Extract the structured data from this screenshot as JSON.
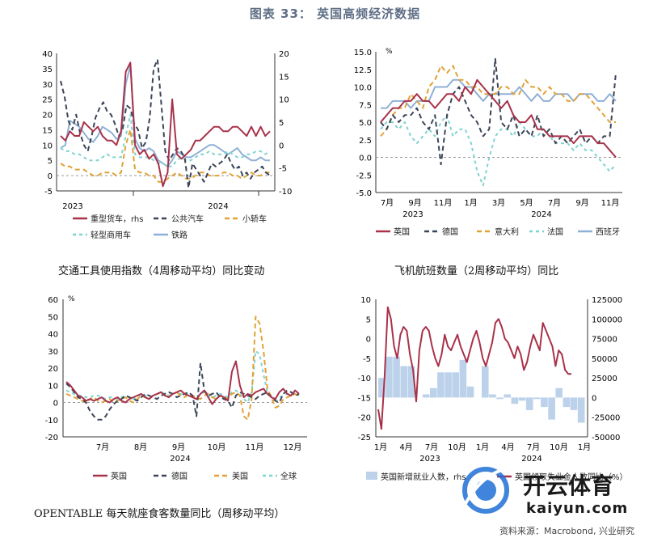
{
  "title": "图表 33： 英国高频经济数据",
  "source": "资料来源：Macrobond, 兴业研究",
  "logo": {
    "brand": "开云体育",
    "url": "kaiyun.com"
  },
  "colors": {
    "red": "#a8324a",
    "dark": "#3b4558",
    "orange": "#e0a236",
    "teal": "#7fd3d0",
    "blue": "#8fb0d6",
    "bar": "#bcd1ea"
  },
  "chart_data": [
    {
      "type": "line",
      "caption": "交通工具使用指数（4周移动平均）同比变动",
      "x_ticks": [
        "2023",
        "2024"
      ],
      "ylim_left": [
        -5,
        40
      ],
      "yticks_left": [
        40,
        35,
        30,
        25,
        20,
        15,
        10,
        5,
        0,
        -5
      ],
      "ylim_right": [
        -10,
        20
      ],
      "yticks_right": [
        20,
        15,
        10,
        5,
        0,
        -5,
        -10
      ],
      "series": [
        {
          "name": "重型货车，rhs",
          "axis": "right",
          "color": "#a8324a",
          "dash": "solid",
          "values": [
            2,
            1,
            3,
            2,
            2,
            5,
            4,
            3,
            4,
            2,
            1,
            1,
            0,
            3,
            16,
            18,
            0,
            -2,
            -1,
            -3,
            -2,
            -4,
            -9,
            -6,
            10,
            -2,
            -3,
            -2,
            -1,
            1,
            1,
            2,
            3,
            4,
            4,
            3,
            3,
            4,
            4,
            3,
            2,
            4,
            2,
            4,
            2,
            3
          ]
        },
        {
          "name": "公共汽车",
          "axis": "left",
          "color": "#3b4558",
          "dash": "6,4",
          "values": [
            31,
            26,
            18,
            15,
            20,
            14,
            10,
            8,
            13,
            19,
            22,
            24,
            21,
            20,
            17,
            13,
            15,
            23,
            22,
            17,
            15,
            9,
            11,
            19,
            35,
            38,
            23,
            8,
            5,
            7,
            9,
            8,
            6,
            -4,
            4,
            2,
            0,
            -2,
            1,
            4,
            3,
            4,
            5,
            7,
            4,
            2,
            3,
            0,
            1,
            -1,
            1,
            2,
            3,
            1,
            0
          ]
        },
        {
          "name": "小轿车",
          "axis": "left",
          "color": "#e0a236",
          "dash": "6,4",
          "values": [
            4,
            3,
            3,
            2,
            2,
            2,
            1,
            0,
            0,
            1,
            1,
            1,
            0,
            1,
            10,
            15,
            2,
            1,
            1,
            0,
            0,
            -2,
            -2,
            -1,
            0,
            1,
            0,
            -1,
            -1,
            0,
            1,
            1,
            0,
            0,
            0,
            1,
            1,
            0,
            0,
            -1,
            0,
            1,
            0,
            0,
            1,
            1
          ]
        },
        {
          "name": "轻型商用车",
          "axis": "left",
          "color": "#7fd3d0",
          "dash": "4,4",
          "values": [
            9,
            8,
            8,
            7,
            7,
            6,
            5,
            5,
            5,
            6,
            7,
            6,
            6,
            6,
            13,
            20,
            7,
            6,
            6,
            6,
            5,
            4,
            4,
            3,
            3,
            5,
            6,
            5,
            5,
            6,
            7,
            7,
            8,
            7,
            7,
            7,
            8,
            7,
            6,
            6,
            7,
            7,
            8,
            8,
            7,
            8
          ]
        },
        {
          "name": "铁路",
          "axis": "left",
          "color": "#8fb0d6",
          "dash": "solid",
          "values": [
            9,
            10,
            18,
            17,
            16,
            14,
            12,
            11,
            13,
            16,
            15,
            14,
            12,
            13,
            30,
            36,
            12,
            9,
            8,
            9,
            8,
            5,
            4,
            3,
            5,
            8,
            7,
            6,
            6,
            7,
            8,
            9,
            10,
            10,
            9,
            8,
            7,
            8,
            9,
            7,
            6,
            5,
            5,
            6,
            5,
            5
          ]
        }
      ],
      "legend_order": [
        "重型货车，rhs",
        "公共汽车",
        "小轿车",
        "轻型商用车",
        "铁路"
      ]
    },
    {
      "type": "line",
      "caption": "飞机航班数量（2周移动平均）同比",
      "unit": "%",
      "x_ticks": [
        "7月",
        "9月",
        "11月",
        "1月",
        "3月",
        "5月",
        "7月",
        "9月",
        "11月"
      ],
      "year_ticks": [
        "2023",
        "2024"
      ],
      "ylim": [
        -5,
        15
      ],
      "yticks": [
        "15.0",
        "12.5",
        "10.0",
        "7.5",
        "5.0",
        "2.5",
        "0.0",
        "-2.5",
        "-5.0"
      ],
      "series": [
        {
          "name": "英国",
          "color": "#a8324a",
          "dash": "solid",
          "values": [
            5,
            6,
            7,
            7,
            8,
            8,
            9,
            8,
            8,
            7,
            8,
            9,
            9,
            8,
            10,
            9,
            11,
            10,
            9,
            8,
            7,
            8,
            6,
            5,
            5,
            6,
            4,
            4,
            3,
            3,
            3,
            3,
            2,
            3,
            3,
            3,
            2,
            2,
            1,
            0
          ]
        },
        {
          "name": "德国",
          "color": "#3b4558",
          "dash": "6,4",
          "values": [
            5,
            4,
            6,
            5,
            6,
            6,
            7,
            5,
            4,
            6,
            -1,
            6,
            9,
            10,
            8,
            6,
            5,
            3,
            4,
            14,
            5,
            4,
            6,
            3,
            4,
            3,
            6,
            3,
            4,
            2,
            3,
            2,
            3,
            4,
            2,
            3,
            2,
            3,
            3,
            12
          ]
        },
        {
          "name": "意大利",
          "color": "#e0a236",
          "dash": "6,4",
          "values": [
            3,
            4,
            6,
            7,
            7,
            9,
            8,
            7,
            10,
            11,
            13,
            12,
            13,
            11,
            11,
            10,
            10,
            9,
            9,
            9,
            10,
            10,
            9,
            9,
            11,
            10,
            10,
            9,
            10,
            9,
            9,
            8,
            8,
            9,
            9,
            8,
            7,
            6,
            5,
            5
          ]
        },
        {
          "name": "法国",
          "color": "#7fd3d0",
          "dash": "4,4",
          "values": [
            4,
            5,
            5,
            4,
            5,
            3,
            2,
            3,
            4,
            3,
            5,
            6,
            3,
            4,
            4,
            2,
            -2,
            -4,
            0,
            3,
            4,
            4,
            3,
            5,
            4,
            3,
            3,
            4,
            3,
            2,
            2,
            2,
            1,
            2,
            1,
            1,
            0,
            -1,
            -2,
            -1
          ]
        },
        {
          "name": "西班牙",
          "color": "#8fb0d6",
          "dash": "solid",
          "values": [
            7,
            7,
            8,
            8,
            8,
            7,
            8,
            8,
            8,
            10,
            10,
            10,
            11,
            11,
            10,
            10,
            9,
            8,
            9,
            9,
            9,
            9,
            9,
            10,
            9,
            8,
            9,
            8,
            8,
            9,
            9,
            9,
            8,
            9,
            9,
            9,
            8,
            8,
            9,
            8
          ]
        }
      ],
      "legend_order": [
        "英国",
        "德国",
        "意大利",
        "法国",
        "西班牙"
      ]
    },
    {
      "type": "line",
      "caption": "OPENTABLE 每天就座食客数量同比（周移动平均）",
      "unit": "%",
      "x_ticks": [
        "7月",
        "8月",
        "9月",
        "10月",
        "11月",
        "12月"
      ],
      "year_tick": "2024",
      "ylim": [
        -20,
        60
      ],
      "yticks": [
        60,
        50,
        40,
        30,
        20,
        10,
        0,
        -10,
        -20
      ],
      "series": [
        {
          "name": "英国",
          "color": "#a8324a",
          "dash": "solid",
          "values": [
            12,
            10,
            7,
            4,
            3,
            1,
            2,
            1,
            2,
            3,
            1,
            0,
            2,
            3,
            1,
            0,
            2,
            3,
            4,
            5,
            3,
            2,
            4,
            5,
            6,
            4,
            3,
            5,
            6,
            7,
            5,
            4,
            3,
            2,
            5,
            7,
            3,
            -1,
            2,
            4,
            3,
            1,
            18,
            24,
            10,
            3,
            5,
            4,
            6,
            7,
            8,
            5,
            3,
            2,
            6,
            8,
            5,
            4,
            7,
            5
          ]
        },
        {
          "name": "德国",
          "color": "#3b4558",
          "dash": "6,4",
          "values": [
            11,
            9,
            6,
            3,
            2,
            0,
            -5,
            -8,
            -10,
            -10,
            -8,
            -4,
            -1,
            1,
            2,
            4,
            3,
            2,
            1,
            3,
            5,
            4,
            3,
            2,
            4,
            5,
            6,
            5,
            3,
            4,
            5,
            6,
            4,
            -8,
            23,
            7,
            4,
            5,
            6,
            3,
            2,
            1,
            -3,
            4,
            6,
            5,
            4,
            3,
            2,
            4,
            5,
            6,
            3,
            1,
            0,
            5,
            7,
            6,
            4,
            5
          ]
        },
        {
          "name": "美国",
          "color": "#e0a236",
          "dash": "6,4",
          "values": [
            5,
            4,
            3,
            2,
            1,
            0,
            2,
            3,
            1,
            0,
            1,
            2,
            0,
            1,
            2,
            3,
            1,
            0,
            2,
            4,
            3,
            2,
            4,
            5,
            6,
            4,
            3,
            5,
            6,
            4,
            3,
            5,
            4,
            3,
            2,
            4,
            5,
            3,
            2,
            4,
            3,
            2,
            5,
            6,
            4,
            -8,
            -10,
            2,
            50,
            46,
            30,
            8,
            3,
            -3,
            -2,
            2,
            3,
            4,
            5,
            3
          ]
        },
        {
          "name": "全球",
          "color": "#7fd3d0",
          "dash": "4,4",
          "values": [
            7,
            6,
            5,
            4,
            4,
            3,
            3,
            4,
            4,
            3,
            2,
            3,
            3,
            2,
            3,
            4,
            3,
            2,
            3,
            5,
            4,
            3,
            4,
            5,
            6,
            5,
            4,
            5,
            6,
            5,
            4,
            5,
            4,
            3,
            5,
            6,
            4,
            3,
            4,
            5,
            4,
            3,
            6,
            7,
            5,
            2,
            0,
            6,
            30,
            28,
            16,
            6,
            4,
            2,
            3,
            4,
            5,
            5,
            6,
            4
          ]
        }
      ],
      "legend_order": [
        "英国",
        "德国",
        "美国",
        "全球"
      ]
    },
    {
      "type": "bar+line",
      "caption": "",
      "x_ticks": [
        "1月",
        "4月",
        "7月",
        "10月",
        "1月",
        "4月",
        "7月",
        "10月",
        "1月"
      ],
      "year_ticks": [
        "2023",
        "2024"
      ],
      "ylim_left": [
        -25,
        10
      ],
      "yticks_left": [
        10,
        5,
        0,
        -5,
        -10,
        -15,
        -20,
        -25
      ],
      "ylim_right": [
        -50000,
        125000
      ],
      "yticks_right": [
        125000,
        100000,
        75000,
        50000,
        25000,
        0,
        -25000,
        -50000
      ],
      "bars": {
        "name": "英国新增就业人数，rhs",
        "axis": "right",
        "color": "#bcd1ea",
        "values": [
          25000,
          52000,
          52000,
          40000,
          40000,
          0,
          4000,
          12000,
          32000,
          32000,
          32000,
          48000,
          14000,
          0,
          40000,
          4000,
          -2000,
          4000,
          -8000,
          -4000,
          -16000,
          -2000,
          -12000,
          -28000,
          12000,
          -12000,
          -16000,
          -32000
        ]
      },
      "line": {
        "name": "英国领取失业金人数同比（%）",
        "axis": "left",
        "color": "#a8324a",
        "values": [
          -18,
          -23,
          -10,
          8,
          5,
          -2,
          -5,
          1,
          3,
          2,
          -4,
          -8,
          -16,
          -3,
          2,
          3,
          2,
          -2,
          -5,
          -7,
          -4,
          1,
          -2,
          -3,
          -1,
          1,
          -2,
          -4,
          -6,
          -3,
          0,
          2,
          -1,
          -5,
          -7,
          -4,
          -1,
          4,
          5,
          3,
          0,
          -1,
          -3,
          -5,
          -2,
          -4,
          -8,
          -6,
          -2,
          1,
          -1,
          -3,
          4,
          2,
          0,
          -2,
          -7,
          -3,
          -4,
          -8,
          -9,
          -9
        ]
      },
      "legend_order": [
        "英国新增就业人数，rhs",
        "英国领取失业金人数同比（%）"
      ]
    }
  ]
}
